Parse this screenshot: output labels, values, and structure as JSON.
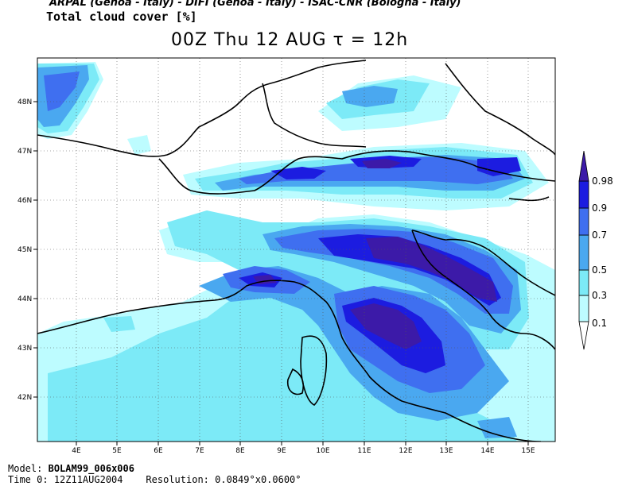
{
  "header": {
    "credits": "ARPAL (Genoa - Italy)  -  DIFI (Genoa - Italy)  -  ISAC-CNR (Bologna - Italy)",
    "variable_title": "Total cloud cover [%]",
    "main_title": "00Z Thu 12 AUG  τ = 12h"
  },
  "map": {
    "lat_labels": [
      "48N",
      "47N",
      "46N",
      "45N",
      "44N",
      "43N",
      "42N"
    ],
    "lon_labels": [
      "4E",
      "5E",
      "6E",
      "7E",
      "8E",
      "9E",
      "10E",
      "11E",
      "12E",
      "13E",
      "14E",
      "15E"
    ]
  },
  "legend": {
    "levels": [
      "0.1",
      "0.3",
      "0.5",
      "0.7",
      "0.9",
      "0.98"
    ],
    "colors": [
      "#bdfcff",
      "#7ceaf7",
      "#4aa8f0",
      "#3f6ff0",
      "#1c1ce0",
      "#3c1aa8"
    ]
  },
  "footer": {
    "model_label": "Model:",
    "model_value": "BOLAM99_006x006",
    "time_label": "Time 0:",
    "time_value": "12Z11AUG2004",
    "resolution_label": "Resolution:",
    "resolution_value": "0.0849°x0.0600°"
  }
}
